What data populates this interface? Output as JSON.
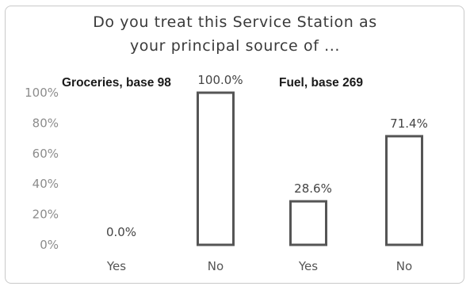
{
  "chart_data": {
    "type": "bar",
    "title_lines": [
      "Do you treat this Service Station as",
      "your principal source of ..."
    ],
    "groups": [
      {
        "label": "Groceries, base 98",
        "categories": [
          "Yes",
          "No"
        ],
        "values": [
          0.0,
          100.0
        ],
        "labels": [
          "0.0%",
          "100.0%"
        ]
      },
      {
        "label": "Fuel, base 269",
        "categories": [
          "Yes",
          "No"
        ],
        "values": [
          28.6,
          71.4
        ],
        "labels": [
          "28.6%",
          "71.4%"
        ]
      }
    ],
    "yticks": [
      "0%",
      "20%",
      "40%",
      "60%",
      "80%",
      "100%"
    ],
    "ylim": [
      0,
      100
    ],
    "grid": false,
    "legend": "none"
  }
}
